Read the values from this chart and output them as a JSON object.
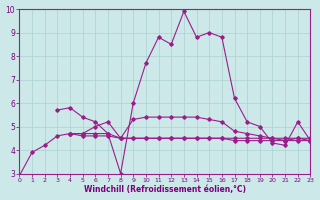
{
  "xlabel": "Windchill (Refroidissement éolien,°C)",
  "x": [
    0,
    1,
    2,
    3,
    4,
    5,
    6,
    7,
    8,
    9,
    10,
    11,
    12,
    13,
    14,
    15,
    16,
    17,
    18,
    19,
    20,
    21,
    22,
    23
  ],
  "line1": [
    2.9,
    3.9,
    4.2,
    4.6,
    4.7,
    4.6,
    4.6,
    4.6,
    4.5,
    4.5,
    4.5,
    4.5,
    4.5,
    4.5,
    4.5,
    4.5,
    4.5,
    4.5,
    4.5,
    4.5,
    4.5,
    4.5,
    4.5,
    4.5
  ],
  "line2": [
    null,
    null,
    null,
    5.7,
    5.8,
    5.4,
    5.2,
    4.7,
    3.0,
    6.0,
    7.7,
    8.8,
    8.5,
    9.9,
    8.8,
    9.0,
    8.8,
    6.2,
    5.2,
    5.0,
    4.3,
    4.2,
    5.2,
    4.4
  ],
  "line3": [
    null,
    null,
    null,
    null,
    4.7,
    4.7,
    4.7,
    4.7,
    4.5,
    5.3,
    5.4,
    5.4,
    5.4,
    5.4,
    5.4,
    5.3,
    5.2,
    4.8,
    4.7,
    4.6,
    4.5,
    4.4,
    4.5,
    4.4
  ],
  "line4": [
    null,
    null,
    null,
    null,
    4.7,
    4.7,
    5.0,
    5.2,
    4.5,
    4.5,
    4.5,
    4.5,
    4.5,
    4.5,
    4.5,
    4.5,
    4.5,
    4.4,
    4.4,
    4.4,
    4.4,
    4.4,
    4.4,
    4.4
  ],
  "ylim": [
    3,
    10
  ],
  "xlim": [
    0,
    23
  ],
  "line_color": "#9b1d8a",
  "bg_color": "#cce8e8",
  "grid_color": "#aad0d0",
  "label_color": "#7b007b",
  "tick_color": "#7b007b",
  "spine_color": "#9b1d8a"
}
